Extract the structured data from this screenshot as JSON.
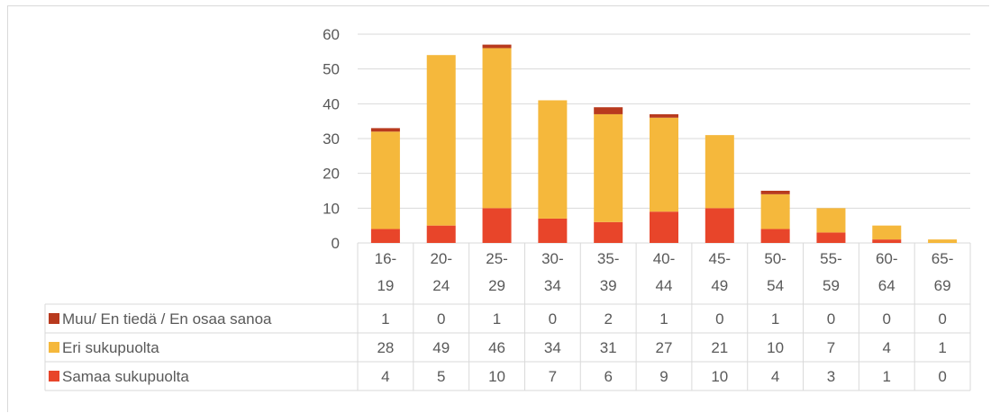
{
  "chart_data": {
    "type": "bar",
    "stacked": true,
    "categories": [
      "16-19",
      "20-24",
      "25-29",
      "30-34",
      "35-39",
      "40-44",
      "45-49",
      "50-54",
      "55-59",
      "60-64",
      "65-69"
    ],
    "category_lines": [
      [
        "16-",
        "19"
      ],
      [
        "20-",
        "24"
      ],
      [
        "25-",
        "29"
      ],
      [
        "30-",
        "34"
      ],
      [
        "35-",
        "39"
      ],
      [
        "40-",
        "44"
      ],
      [
        "45-",
        "49"
      ],
      [
        "50-",
        "54"
      ],
      [
        "55-",
        "59"
      ],
      [
        "60-",
        "64"
      ],
      [
        "65-",
        "69"
      ]
    ],
    "series": [
      {
        "name": "Samaa sukupuolta",
        "color": "#e8452a",
        "values": [
          4,
          5,
          10,
          7,
          6,
          9,
          10,
          4,
          3,
          1,
          0
        ]
      },
      {
        "name": "Eri sukupuolta",
        "color": "#f5b83c",
        "values": [
          28,
          49,
          46,
          34,
          31,
          27,
          21,
          10,
          7,
          4,
          1
        ]
      },
      {
        "name": "Muu/ En tiedä / En osaa sanoa",
        "color": "#b83a1e",
        "values": [
          1,
          0,
          1,
          0,
          2,
          1,
          0,
          1,
          0,
          0,
          0
        ]
      }
    ],
    "yticks": [
      "0",
      "10",
      "20",
      "30",
      "40",
      "50",
      "60"
    ],
    "ylim": [
      0,
      60
    ],
    "grid": true,
    "legend": "data-table"
  }
}
